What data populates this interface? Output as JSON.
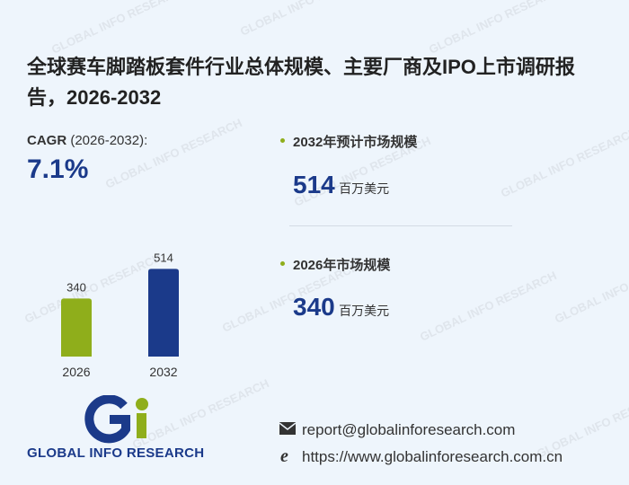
{
  "header": {
    "title": "全球赛车脚踏板套件行业总体规模、主要厂商及IPO上市调研报告，2026-2032"
  },
  "watermark": "GLOBAL INFO RESEARCH",
  "cagr": {
    "label": "CAGR",
    "period": "(2026-2032):",
    "value": "7.1%"
  },
  "stats": [
    {
      "label": "2032年预计市场规模",
      "value": "514",
      "unit": "百万美元"
    },
    {
      "label": "2026年市场规模",
      "value": "340",
      "unit": "百万美元"
    }
  ],
  "chart_data": {
    "type": "bar",
    "categories": [
      "2026",
      "2032"
    ],
    "values": [
      340,
      514
    ],
    "colors": [
      "#8fae1b",
      "#1b3a8a"
    ]
  },
  "logo": {
    "text": "GLOBAL INFO RESEARCH"
  },
  "contacts": {
    "email": "report@globalinforesearch.com",
    "website": "https://www.globalinforesearch.com.cn"
  }
}
